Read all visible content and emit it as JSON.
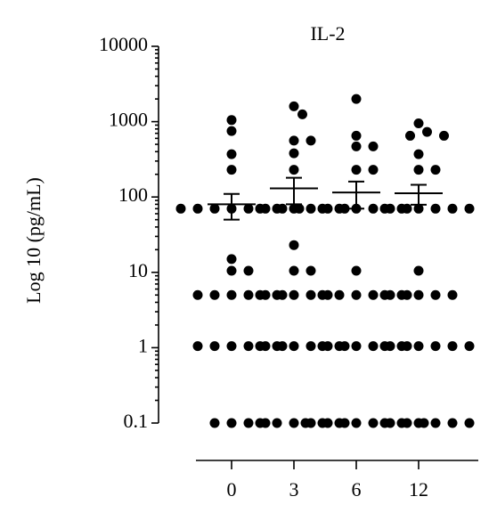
{
  "chart_data": {
    "type": "dot",
    "title": "IL-2",
    "y_label": "Log 10 (pg/mL)",
    "categories": [
      "0",
      "3",
      "6",
      "12"
    ],
    "groups": [
      {
        "values": [
          1050,
          750,
          370,
          230,
          70,
          70,
          70,
          70,
          70,
          70,
          70,
          70,
          15,
          10.5,
          10.5,
          5,
          5,
          5,
          5,
          5,
          5,
          1.05,
          1.05,
          1.05,
          1.05,
          1.05,
          1.05,
          0.1,
          0.1,
          0.1,
          0.1
        ],
        "mean": 80,
        "sem": 30
      },
      {
        "values": [
          1600,
          1250,
          560,
          560,
          380,
          230,
          70,
          70,
          70,
          70,
          70,
          70,
          23,
          10.5,
          10.5,
          5,
          5,
          5,
          5,
          5,
          1.05,
          1.05,
          1.05,
          1.05,
          1.05,
          1.05,
          0.1,
          0.1,
          0.1,
          0.1,
          0.1,
          0.1
        ],
        "mean": 130,
        "sem": 50
      },
      {
        "values": [
          2000,
          650,
          470,
          470,
          230,
          230,
          70,
          70,
          70,
          70,
          70,
          70,
          10.5,
          5,
          5,
          5,
          5,
          5,
          5,
          1.05,
          1.05,
          1.05,
          1.05,
          1.05,
          1.05,
          0.1,
          0.1,
          0.1,
          0.1,
          0.1,
          0.1,
          0.1,
          0.1
        ],
        "mean": 115,
        "sem": 45
      },
      {
        "values": [
          950,
          730,
          650,
          650,
          370,
          230,
          230,
          70,
          70,
          70,
          70,
          70,
          70,
          10.5,
          5,
          5,
          5,
          5,
          5,
          1.05,
          1.05,
          1.05,
          1.05,
          1.05,
          1.05,
          0.1,
          0.1,
          0.1,
          0.1,
          0.1,
          0.1
        ],
        "mean": 112,
        "sem": 33
      }
    ],
    "color": "#000000",
    "log_y": true,
    "ylim": [
      0.1,
      10000
    ],
    "yticks": [
      0.1,
      1,
      10,
      100,
      1000,
      10000
    ]
  }
}
